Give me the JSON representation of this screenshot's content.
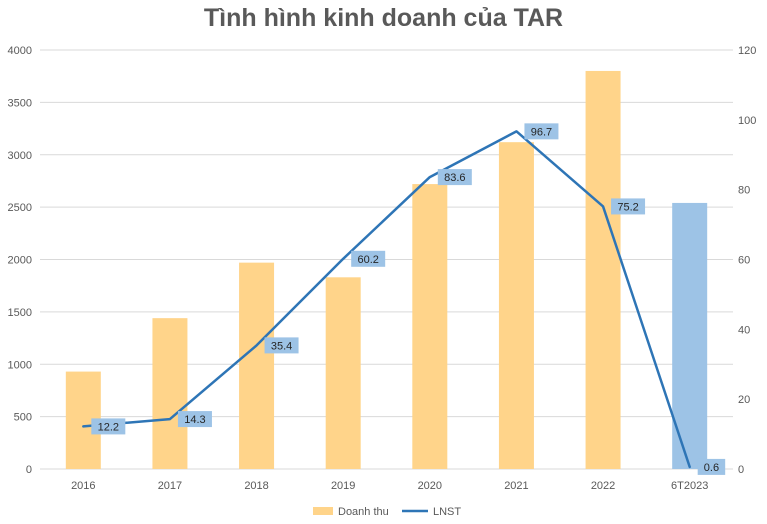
{
  "chart_data": {
    "type": "bar",
    "title": "Tình hình kinh doanh của TAR",
    "categories": [
      "2016",
      "2017",
      "2018",
      "2019",
      "2020",
      "2021",
      "2022",
      "6T2023"
    ],
    "series": [
      {
        "name": "Doanh thu",
        "kind": "bar",
        "axis": "left",
        "values": [
          930,
          1440,
          1970,
          1830,
          2720,
          3120,
          3800,
          2540
        ],
        "color": "#FFD48A",
        "highlight_color": "#9DC3E6",
        "highlight_index": 7
      },
      {
        "name": "LNST",
        "kind": "line",
        "axis": "right",
        "values": [
          12.2,
          14.3,
          35.4,
          60.2,
          83.6,
          96.7,
          75.2,
          0.6
        ],
        "labels": [
          "12.2",
          "14.3",
          "35.4",
          "60.2",
          "83.6",
          "96.7",
          "75.2",
          "0.6"
        ],
        "color": "#2E75B6",
        "label_bg": "#9DC3E6"
      }
    ],
    "y_left": {
      "min": 0,
      "max": 4000,
      "step": 500,
      "ticks": [
        "0",
        "500",
        "1000",
        "1500",
        "2000",
        "2500",
        "3000",
        "3500",
        "4000"
      ]
    },
    "y_right": {
      "min": 0,
      "max": 120,
      "step": 20,
      "ticks": [
        "0",
        "20",
        "40",
        "60",
        "80",
        "100",
        "120"
      ]
    },
    "grid": true,
    "gridline_color": "#D9D9D9",
    "legend_position": "bottom"
  }
}
